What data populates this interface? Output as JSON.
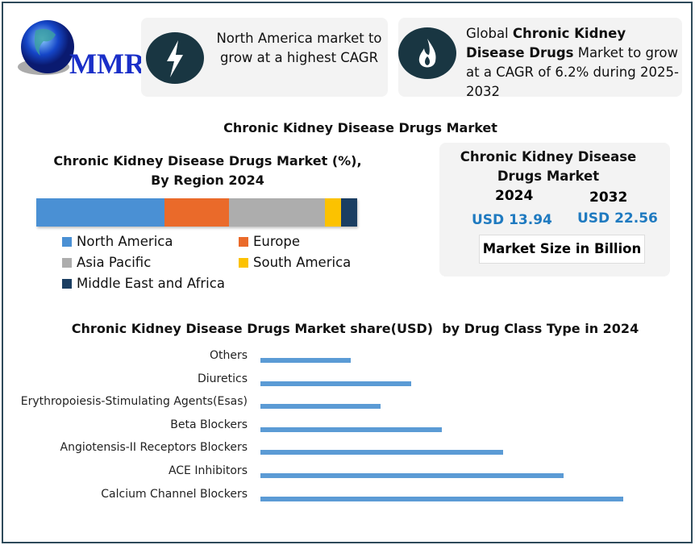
{
  "logo": {
    "text": "MMR"
  },
  "callouts": [
    {
      "icon": "lightning-icon",
      "text": "North America market to grow at a highest CAGR"
    },
    {
      "icon": "flame-icon",
      "pre": "Global ",
      "bold": "Chronic Kidney Disease Drugs",
      "post": " Market to grow at a CAGR of 6.2% during 2025-2032"
    }
  ],
  "main_title": "Chronic Kidney Disease Drugs Market",
  "market_card": {
    "title": "Chronic Kidney Disease Drugs Market",
    "year1": "2024",
    "value1": "USD 13.94",
    "year2": "2032",
    "value2": "USD 22.56",
    "unit": "Market Size in Billion",
    "value_color": "#1f7ac0"
  },
  "chart_data": [
    {
      "type": "bar",
      "orientation": "horizontal-stacked",
      "title": "Chronic Kidney Disease Drugs Market (%), By Region 2024",
      "series": [
        {
          "name": "North America",
          "value": 40,
          "color": "#4a90d4"
        },
        {
          "name": "Europe",
          "value": 20,
          "color": "#ea6a2a"
        },
        {
          "name": "Asia Pacific",
          "value": 30,
          "color": "#adadad"
        },
        {
          "name": "South America",
          "value": 5,
          "color": "#fcc200"
        },
        {
          "name": "Middle East and Africa",
          "value": 5,
          "color": "#1b3e62"
        }
      ],
      "legend": "bottom"
    },
    {
      "type": "bar",
      "orientation": "horizontal",
      "title": "Chronic Kidney Disease Drugs Market share(USD)  by Drug Class Type in 2024",
      "categories": [
        "Others",
        "Diuretics",
        "Erythropoiesis-Stimulating Agents(Esas)",
        "Beta Blockers",
        "Angiotensis-II Receptors Blockers",
        "ACE Inhibitors",
        "Calcium Channel Blockers"
      ],
      "values": [
        6.2,
        10.4,
        8.3,
        12.5,
        16.7,
        20.9,
        25.0
      ],
      "color": "#5b9bd5",
      "grid": false
    }
  ]
}
